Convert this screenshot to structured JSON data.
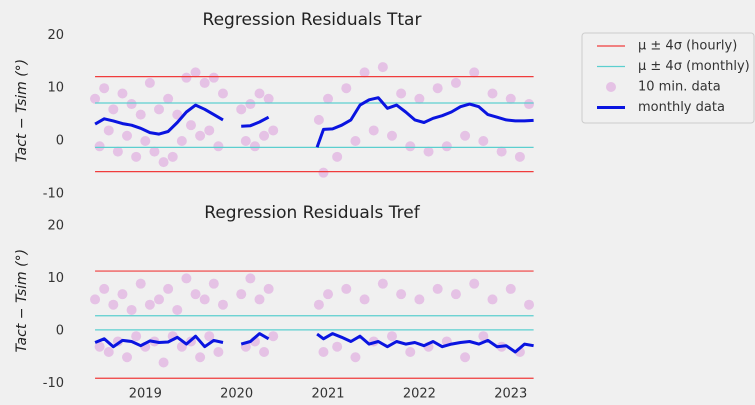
{
  "chart_data": [
    {
      "type": "scatter",
      "title": "Regression Residuals Ttar",
      "y_label": "Tact − Tsim (°)",
      "xlim": [
        2018.34,
        2023.32
      ],
      "ylim": [
        -10,
        21.5
      ],
      "yticks": [
        -10,
        0,
        10,
        20
      ],
      "legend": "outside upper right",
      "series": [
        {
          "name": "μ ± 4σ (hourly)",
          "kind": "hline",
          "color": "#f03c3c",
          "xspan": [
            2018.45,
            2023.25
          ],
          "values": [
            12.2,
            -5.8
          ]
        },
        {
          "name": "μ ± 4σ (monthly)",
          "kind": "hline",
          "color": "#5ccfcf",
          "xspan": [
            2018.45,
            2023.25
          ],
          "values": [
            7.2,
            -1.2
          ]
        },
        {
          "name": "10 min. data",
          "kind": "scatter",
          "color": "#c020c0",
          "x": [
            2018.45,
            2018.5,
            2018.55,
            2018.6,
            2018.65,
            2018.7,
            2018.75,
            2018.8,
            2018.85,
            2018.9,
            2018.95,
            2019.0,
            2019.05,
            2019.1,
            2019.15,
            2019.2,
            2019.25,
            2019.3,
            2019.35,
            2019.4,
            2019.45,
            2019.5,
            2019.55,
            2019.6,
            2019.65,
            2019.7,
            2019.75,
            2019.8,
            2019.85,
            2020.05,
            2020.1,
            2020.15,
            2020.2,
            2020.25,
            2020.3,
            2020.35,
            2020.4,
            2020.9,
            2020.95,
            2021.0,
            2021.1,
            2021.2,
            2021.3,
            2021.4,
            2021.5,
            2021.6,
            2021.7,
            2021.8,
            2021.9,
            2022.0,
            2022.1,
            2022.2,
            2022.3,
            2022.4,
            2022.5,
            2022.6,
            2022.7,
            2022.8,
            2022.9,
            2023.0,
            2023.1,
            2023.2
          ],
          "values": [
            8,
            -1,
            10,
            2,
            6,
            -2,
            9,
            1,
            7,
            -3,
            5,
            0,
            11,
            -2,
            6,
            -4,
            8,
            -3,
            5,
            0,
            12,
            3,
            13,
            1,
            11,
            2,
            12,
            -1,
            9,
            6,
            0,
            7,
            -1,
            9,
            1,
            8,
            2,
            4,
            -6,
            8,
            -3,
            10,
            0,
            13,
            2,
            14,
            1,
            9,
            -1,
            8,
            -2,
            10,
            -1,
            11,
            1,
            13,
            0,
            9,
            -2,
            8,
            -3,
            7
          ]
        },
        {
          "name": "monthly data",
          "kind": "line",
          "color": "#0a14e0",
          "x": [
            2018.45,
            2018.55,
            2018.65,
            2018.75,
            2018.85,
            2018.95,
            2019.05,
            2019.15,
            2019.25,
            2019.35,
            2019.45,
            2019.55,
            2019.65,
            2019.75,
            2019.85,
            2019.95,
            2020.05,
            2020.15,
            2020.25,
            2020.35,
            2020.6,
            2020.88,
            2020.95,
            2021.05,
            2021.15,
            2021.25,
            2021.35,
            2021.45,
            2021.55,
            2021.65,
            2021.75,
            2021.85,
            2021.95,
            2022.05,
            2022.15,
            2022.25,
            2022.35,
            2022.45,
            2022.55,
            2022.65,
            2022.75,
            2022.85,
            2022.95,
            2023.05,
            2023.15,
            2023.25
          ],
          "values": [
            3.2,
            4.2,
            3.8,
            3.3,
            3.0,
            2.4,
            1.6,
            1.3,
            1.8,
            3.5,
            5.5,
            6.8,
            6.0,
            5.0,
            4.0,
            null,
            2.8,
            2.9,
            3.6,
            4.5,
            null,
            -1.2,
            2.2,
            2.3,
            3.0,
            4.0,
            6.8,
            7.8,
            8.2,
            6.2,
            6.8,
            5.5,
            4.0,
            3.5,
            4.3,
            4.8,
            5.5,
            6.5,
            7.0,
            6.5,
            5.0,
            4.5,
            4.0,
            3.8,
            3.8,
            3.9
          ]
        }
      ]
    },
    {
      "type": "scatter",
      "title": "Regression Residuals Tref",
      "y_label": "Tact − Tsim (°)",
      "xlim": [
        2018.34,
        2023.32
      ],
      "ylim": [
        -10,
        21.5
      ],
      "yticks": [
        -10,
        0,
        10,
        20
      ],
      "xticks": [
        2019,
        2020,
        2021,
        2022,
        2023
      ],
      "series": [
        {
          "kind": "hline",
          "color": "#f03c3c",
          "xspan": [
            2018.45,
            2023.25
          ],
          "values": [
            11.4,
            -9
          ]
        },
        {
          "kind": "hline",
          "color": "#5ccfcf",
          "xspan": [
            2018.45,
            2023.25
          ],
          "values": [
            2.9,
            0.2
          ]
        },
        {
          "kind": "scatter",
          "color": "#c020c0",
          "x": [
            2018.45,
            2018.5,
            2018.55,
            2018.6,
            2018.65,
            2018.7,
            2018.75,
            2018.8,
            2018.85,
            2018.9,
            2018.95,
            2019.0,
            2019.05,
            2019.1,
            2019.15,
            2019.2,
            2019.25,
            2019.3,
            2019.35,
            2019.4,
            2019.45,
            2019.5,
            2019.55,
            2019.6,
            2019.65,
            2019.7,
            2019.75,
            2019.8,
            2019.85,
            2020.05,
            2020.1,
            2020.15,
            2020.2,
            2020.25,
            2020.3,
            2020.35,
            2020.4,
            2020.9,
            2020.95,
            2021.0,
            2021.1,
            2021.2,
            2021.3,
            2021.4,
            2021.5,
            2021.6,
            2021.7,
            2021.8,
            2021.9,
            2022.0,
            2022.1,
            2022.2,
            2022.3,
            2022.4,
            2022.5,
            2022.6,
            2022.7,
            2022.8,
            2022.9,
            2023.0,
            2023.1,
            2023.2
          ],
          "values": [
            6,
            -3,
            8,
            -4,
            5,
            -2,
            7,
            -5,
            4,
            -1,
            9,
            -3,
            5,
            -2,
            6,
            -6,
            8,
            -1,
            4,
            -3,
            10,
            -2,
            7,
            -5,
            6,
            -1,
            9,
            -4,
            5,
            7,
            -3,
            10,
            -2,
            6,
            -4,
            8,
            -1,
            5,
            -4,
            7,
            -3,
            8,
            -5,
            6,
            -2,
            9,
            -1,
            7,
            -4,
            6,
            -3,
            8,
            -2,
            7,
            -5,
            9,
            -1,
            6,
            -3,
            8,
            -4,
            5
          ]
        },
        {
          "kind": "line",
          "color": "#0a14e0",
          "x": [
            2018.45,
            2018.55,
            2018.65,
            2018.75,
            2018.85,
            2018.95,
            2019.05,
            2019.15,
            2019.25,
            2019.35,
            2019.45,
            2019.55,
            2019.65,
            2019.75,
            2019.85,
            2019.95,
            2020.05,
            2020.15,
            2020.25,
            2020.35,
            2020.6,
            2020.88,
            2020.95,
            2021.05,
            2021.15,
            2021.25,
            2021.35,
            2021.45,
            2021.55,
            2021.65,
            2021.75,
            2021.85,
            2021.95,
            2022.05,
            2022.15,
            2022.25,
            2022.35,
            2022.45,
            2022.55,
            2022.65,
            2022.75,
            2022.85,
            2022.95,
            2023.05,
            2023.15,
            2023.25
          ],
          "values": [
            -2.2,
            -1.5,
            -3,
            -1.8,
            -2,
            -2.8,
            -1.9,
            -2.2,
            -2.1,
            -1.2,
            -2.5,
            -1.0,
            -3.0,
            -1.8,
            -2.2,
            null,
            -2.5,
            -2.0,
            -0.5,
            -1.5,
            null,
            -0.6,
            -1.5,
            -0.5,
            -1.2,
            -2.0,
            -1.0,
            -2.5,
            -2.0,
            -3.0,
            -2.0,
            -2.5,
            -2.2,
            -2.8,
            -2.0,
            -3.0,
            -2.5,
            -2.2,
            -2.0,
            -2.5,
            -1.8,
            -3.0,
            -2.8,
            -4.0,
            -2.5,
            -2.8
          ]
        }
      ]
    }
  ]
}
